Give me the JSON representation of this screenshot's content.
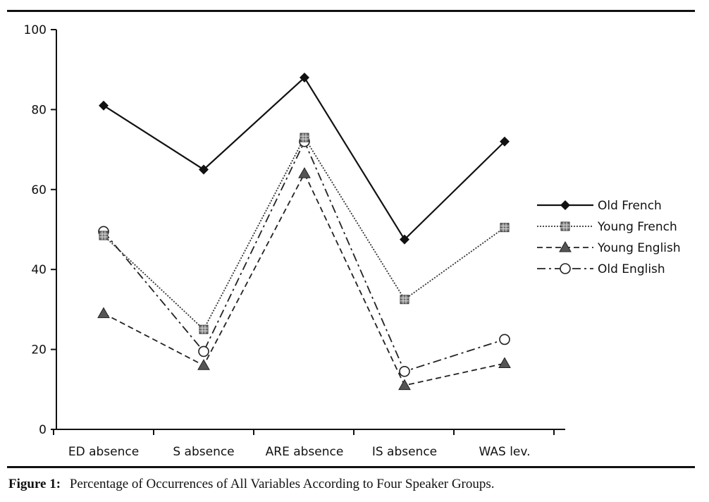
{
  "caption": {
    "label": "Figure 1:",
    "text": "Percentage of Occurrences of All Variables According to Four Speaker Groups."
  },
  "chart_data": {
    "type": "line",
    "title": "",
    "xlabel": "",
    "ylabel": "",
    "categories": [
      "ED absence",
      "S absence",
      "ARE absence",
      "IS absence",
      "WAS lev."
    ],
    "ylim": [
      0,
      100
    ],
    "yticks": [
      0,
      20,
      40,
      60,
      80,
      100
    ],
    "grid": false,
    "legend_position": "right",
    "series": [
      {
        "name": "Old French",
        "values": [
          81,
          65,
          88,
          47.5,
          72
        ],
        "marker": "diamond",
        "dash": "solid",
        "color": "#111111"
      },
      {
        "name": "Young French",
        "values": [
          48.5,
          25,
          73,
          32.5,
          50.5
        ],
        "marker": "square-hatched",
        "dash": "dotted",
        "color": "#333333"
      },
      {
        "name": "Young English",
        "values": [
          29,
          16,
          64,
          11,
          16.5
        ],
        "marker": "triangle",
        "dash": "dashed",
        "color": "#222222"
      },
      {
        "name": "Old English",
        "values": [
          49.5,
          19.5,
          72,
          14.5,
          22.5
        ],
        "marker": "circle-open",
        "dash": "dash-dot",
        "color": "#222222"
      }
    ]
  }
}
